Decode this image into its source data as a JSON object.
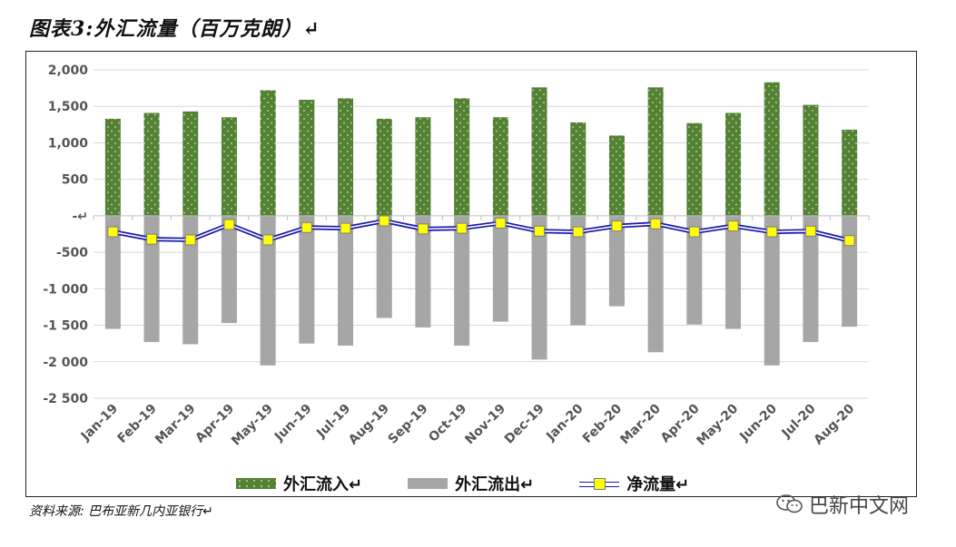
{
  "figure_title": "图表3:外汇流量（百万克朗）↵",
  "source": "资料来源: 巴布亚新几内亚银行↵",
  "watermark": "巴新中文网",
  "colors": {
    "inflow": "#548235",
    "outflow": "#a6a6a6",
    "net_line": "#1a1aa8",
    "net_marker": "#ffff00"
  },
  "chart_data": {
    "type": "bar",
    "categories": [
      "Jan-19",
      "Feb-19",
      "Mar-19",
      "Apr-19",
      "May-19",
      "Jun-19",
      "Jul-19",
      "Aug-19",
      "Sep-19",
      "Oct-19",
      "Nov-19",
      "Dec-19",
      "Jan-20",
      "Feb-20",
      "Mar-20",
      "Apr-20",
      "May-20",
      "Jun-20",
      "Jul-20",
      "Aug-20"
    ],
    "series": [
      {
        "name": "外汇流入↵",
        "kind": "bar",
        "values": [
          1330,
          1410,
          1430,
          1350,
          1720,
          1590,
          1610,
          1330,
          1350,
          1610,
          1350,
          1760,
          1280,
          1100,
          1760,
          1270,
          1410,
          1830,
          1520,
          1180
        ]
      },
      {
        "name": "外汇流出↵",
        "kind": "bar",
        "values": [
          -1550,
          -1730,
          -1760,
          -1470,
          -2050,
          -1750,
          -1780,
          -1400,
          -1530,
          -1780,
          -1450,
          -1970,
          -1500,
          -1240,
          -1870,
          -1490,
          -1550,
          -2050,
          -1730,
          -1520
        ]
      },
      {
        "name": "净流量↵",
        "kind": "line",
        "values": [
          -220,
          -320,
          -330,
          -120,
          -330,
          -160,
          -170,
          -70,
          -180,
          -170,
          -100,
          -210,
          -220,
          -140,
          -110,
          -220,
          -140,
          -220,
          -210,
          -340
        ]
      }
    ],
    "ylim": [
      -2500,
      2000
    ],
    "yticks": [
      {
        "v": 2000,
        "label": "2,000"
      },
      {
        "v": 1500,
        "label": "1,500"
      },
      {
        "v": 1000,
        "label": "1,000"
      },
      {
        "v": 500,
        "label": "500"
      },
      {
        "v": 0,
        "label": "-↵"
      },
      {
        "v": -500,
        "label": "-500"
      },
      {
        "v": -1000,
        "label": "-1 000"
      },
      {
        "v": -1500,
        "label": "-1 500"
      },
      {
        "v": -2000,
        "label": "-2 000"
      },
      {
        "v": -2500,
        "label": "-2 500"
      }
    ],
    "grid": true,
    "legend": "bottom"
  }
}
